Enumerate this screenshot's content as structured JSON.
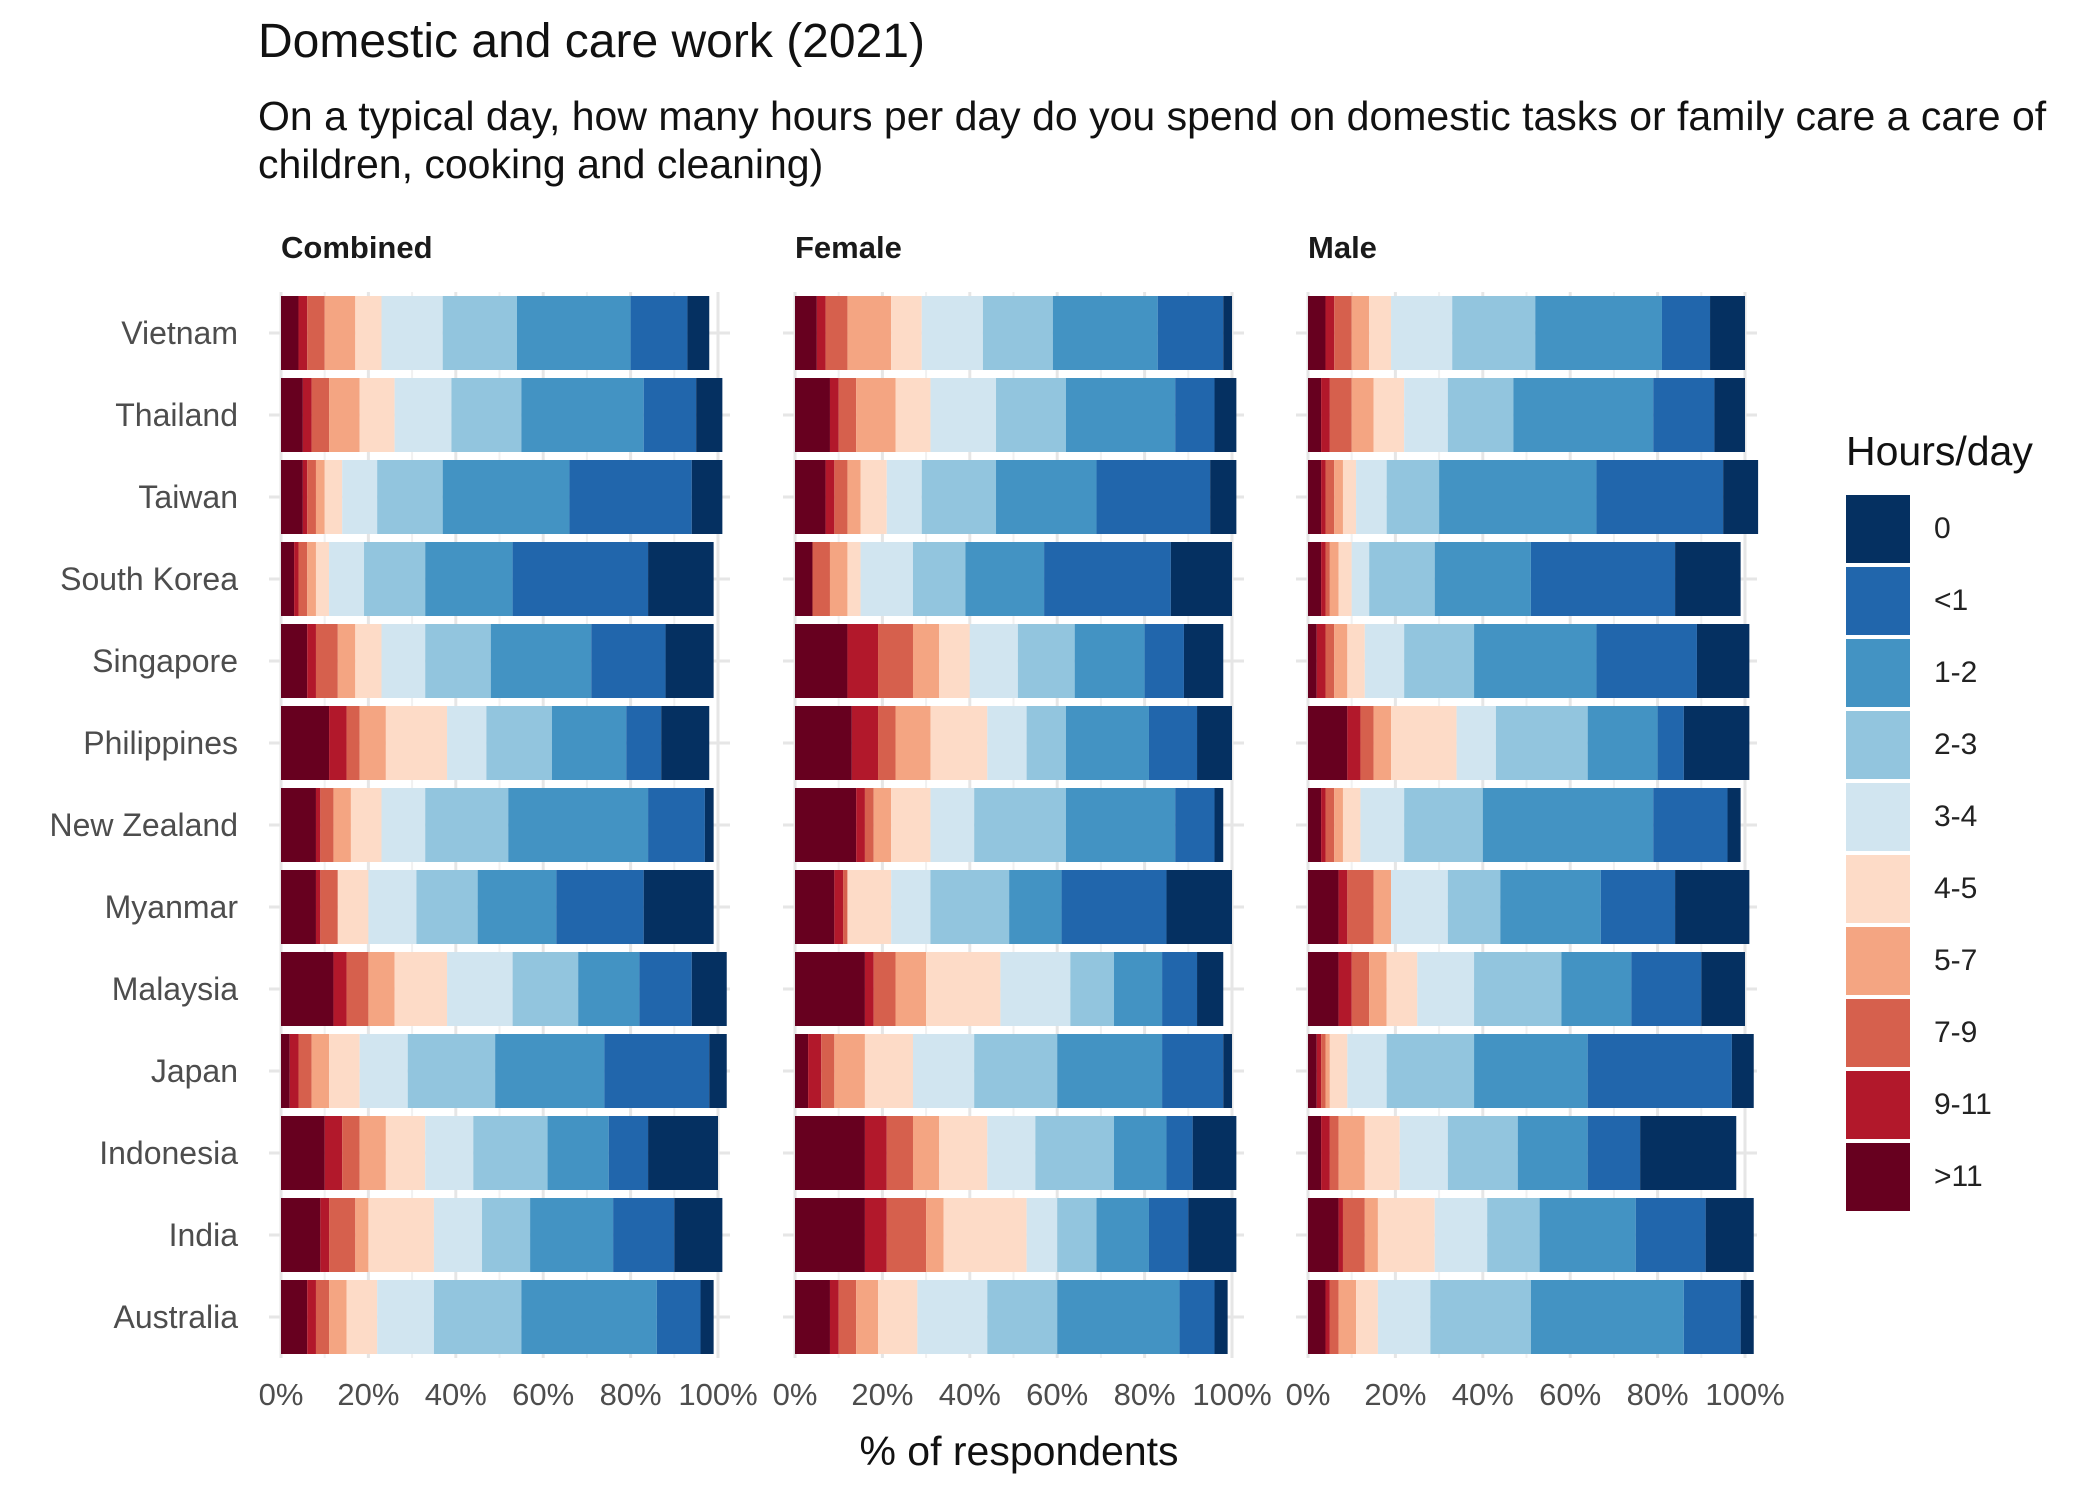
{
  "title": "Domestic and care work (2021)",
  "subtitle": "On a typical day, how many hours per day do you spend on domestic tasks or family care a care of children, cooking and cleaning)",
  "chart_data": {
    "type": "bar",
    "orientation": "horizontal",
    "stacked": true,
    "xlabel": "% of respondents",
    "xlim": [
      0,
      100
    ],
    "x_ticks": [
      "0%",
      "20%",
      "40%",
      "60%",
      "80%",
      "100%"
    ],
    "grid": true,
    "legend_title": "Hours/day",
    "legend_position": "right",
    "legend_order": [
      "0",
      "<1",
      "1-2",
      "2-3",
      "3-4",
      "4-5",
      "5-7",
      "7-9",
      "9-11",
      ">11"
    ],
    "series_order": [
      ">11",
      "9-11",
      "7-9",
      "5-7",
      "4-5",
      "3-4",
      "2-3",
      "1-2",
      "<1",
      "0"
    ],
    "colors": {
      "0": "#053061",
      "<1": "#2166ac",
      "1-2": "#4393c3",
      "2-3": "#92c5de",
      "3-4": "#d1e5f0",
      "4-5": "#fddbc7",
      "5-7": "#f4a582",
      "7-9": "#d6604d",
      "9-11": "#b2182b",
      ">11": "#67001f"
    },
    "categories": [
      "Vietnam",
      "Thailand",
      "Taiwan",
      "South Korea",
      "Singapore",
      "Philippines",
      "New Zealand",
      "Myanmar",
      "Malaysia",
      "Japan",
      "Indonesia",
      "India",
      "Australia"
    ],
    "facets": [
      {
        "name": "Combined",
        "values": {
          "Vietnam": [
            4,
            2,
            4,
            7,
            6,
            14,
            17,
            26,
            13,
            5
          ],
          "Thailand": [
            5,
            2,
            4,
            7,
            8,
            13,
            16,
            28,
            12,
            6
          ],
          "Taiwan": [
            5,
            1,
            2,
            2,
            4,
            8,
            15,
            29,
            28,
            7
          ],
          "South Korea": [
            3,
            1,
            2,
            2,
            3,
            8,
            14,
            20,
            31,
            15
          ],
          "Singapore": [
            6,
            2,
            5,
            4,
            6,
            10,
            15,
            23,
            17,
            11
          ],
          "Philippines": [
            11,
            4,
            3,
            6,
            14,
            9,
            15,
            17,
            8,
            11
          ],
          "New Zealand": [
            8,
            1,
            3,
            4,
            7,
            10,
            19,
            32,
            13,
            2
          ],
          "Myanmar": [
            8,
            1,
            4,
            0,
            7,
            11,
            14,
            18,
            20,
            16
          ],
          "Malaysia": [
            12,
            3,
            5,
            6,
            12,
            15,
            15,
            14,
            12,
            8
          ],
          "Japan": [
            2,
            2,
            3,
            4,
            7,
            11,
            20,
            25,
            24,
            4
          ],
          "Indonesia": [
            10,
            4,
            4,
            6,
            9,
            11,
            17,
            14,
            9,
            16
          ],
          "India": [
            9,
            2,
            6,
            3,
            15,
            11,
            11,
            19,
            14,
            11
          ],
          "Australia": [
            6,
            2,
            3,
            4,
            7,
            13,
            20,
            31,
            10,
            3
          ]
        }
      },
      {
        "name": "Female",
        "values": {
          "Vietnam": [
            5,
            2,
            5,
            10,
            7,
            14,
            16,
            24,
            15,
            2
          ],
          "Thailand": [
            8,
            2,
            4,
            9,
            8,
            15,
            16,
            25,
            9,
            5
          ],
          "Taiwan": [
            7,
            2,
            3,
            3,
            6,
            8,
            17,
            23,
            26,
            6
          ],
          "South Korea": [
            4,
            0,
            4,
            4,
            3,
            12,
            12,
            18,
            29,
            14
          ],
          "Singapore": [
            12,
            7,
            8,
            6,
            7,
            11,
            13,
            16,
            9,
            9
          ],
          "Philippines": [
            13,
            6,
            4,
            8,
            13,
            9,
            9,
            19,
            11,
            8
          ],
          "New Zealand": [
            14,
            2,
            2,
            4,
            9,
            10,
            21,
            25,
            9,
            2
          ],
          "Myanmar": [
            9,
            2,
            1,
            0,
            10,
            9,
            18,
            12,
            24,
            15
          ],
          "Malaysia": [
            16,
            2,
            5,
            7,
            17,
            16,
            10,
            11,
            8,
            6
          ],
          "Japan": [
            3,
            3,
            3,
            7,
            11,
            14,
            19,
            24,
            14,
            2
          ],
          "Indonesia": [
            16,
            5,
            6,
            6,
            11,
            11,
            18,
            12,
            6,
            10
          ],
          "India": [
            16,
            5,
            9,
            4,
            19,
            7,
            9,
            12,
            9,
            11
          ],
          "Australia": [
            8,
            2,
            4,
            5,
            9,
            16,
            16,
            28,
            8,
            3
          ]
        }
      },
      {
        "name": "Male",
        "values": {
          "Vietnam": [
            4,
            2,
            4,
            4,
            5,
            14,
            19,
            29,
            11,
            8
          ],
          "Thailand": [
            3,
            2,
            5,
            5,
            7,
            10,
            15,
            32,
            14,
            7
          ],
          "Taiwan": [
            3,
            1,
            2,
            2,
            3,
            7,
            12,
            36,
            29,
            8
          ],
          "South Korea": [
            3,
            1,
            1,
            2,
            3,
            4,
            15,
            22,
            33,
            15
          ],
          "Singapore": [
            2,
            2,
            2,
            3,
            4,
            9,
            16,
            28,
            23,
            12
          ],
          "Philippines": [
            9,
            3,
            3,
            4,
            15,
            9,
            21,
            16,
            6,
            15
          ],
          "New Zealand": [
            3,
            1,
            2,
            2,
            4,
            10,
            18,
            39,
            17,
            3
          ],
          "Myanmar": [
            7,
            2,
            6,
            4,
            0,
            13,
            12,
            23,
            17,
            17
          ],
          "Malaysia": [
            7,
            3,
            4,
            4,
            7,
            13,
            20,
            16,
            16,
            10
          ],
          "Japan": [
            2,
            1,
            1,
            1,
            4,
            9,
            20,
            26,
            33,
            5
          ],
          "Indonesia": [
            3,
            2,
            2,
            6,
            8,
            11,
            16,
            16,
            12,
            22
          ],
          "India": [
            7,
            1,
            5,
            3,
            13,
            12,
            12,
            22,
            16,
            11
          ],
          "Australia": [
            4,
            1,
            2,
            4,
            5,
            12,
            23,
            35,
            13,
            3
          ]
        }
      }
    ]
  }
}
